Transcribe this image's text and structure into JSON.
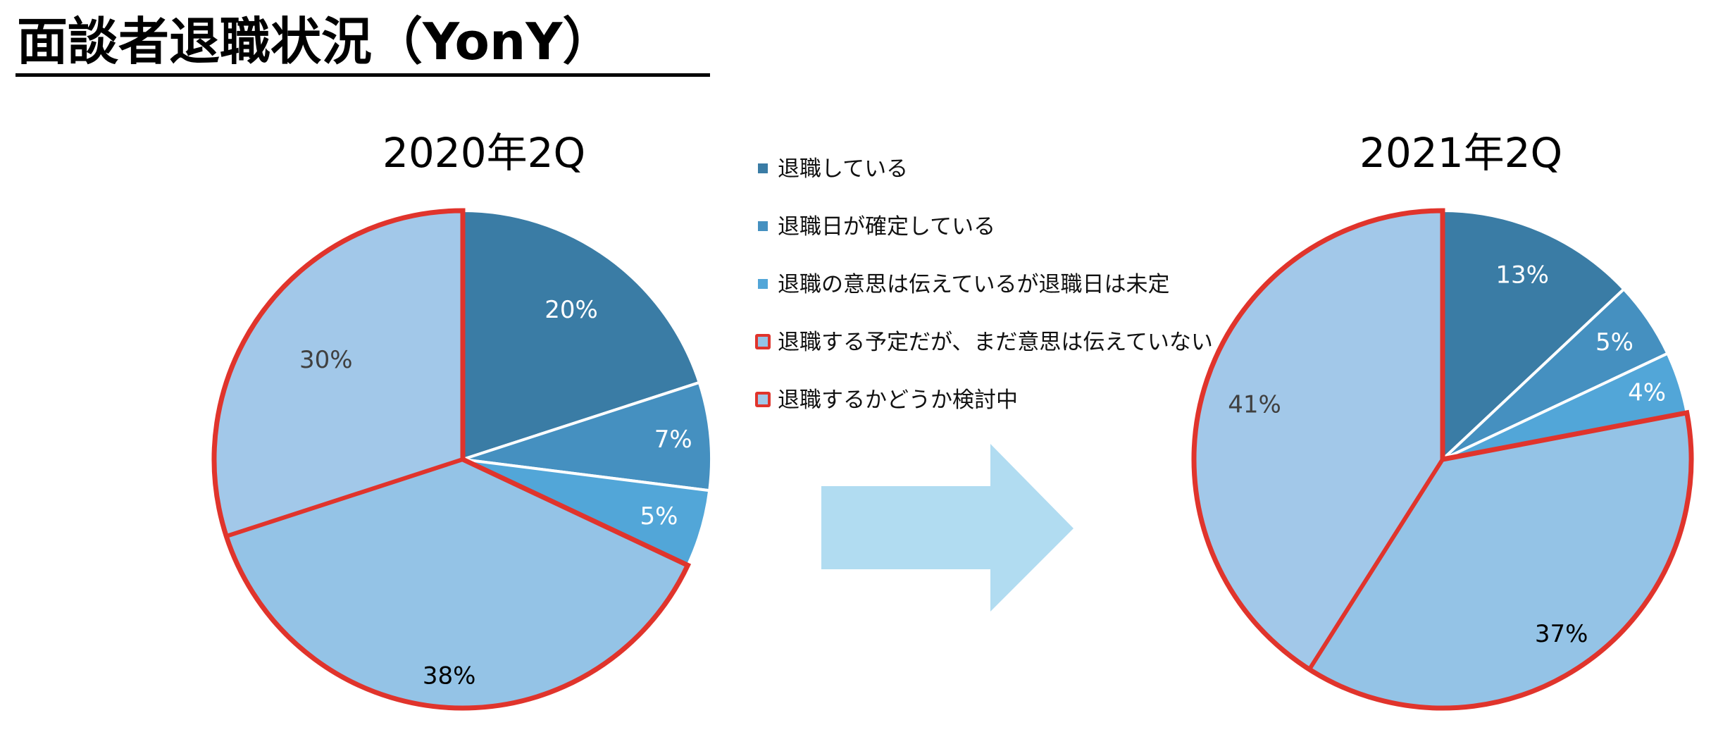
{
  "page": {
    "title": "面談者退職状況（YonY）"
  },
  "legend": [
    {
      "label": "退職している",
      "color": "#3a7ca5",
      "outlined": false
    },
    {
      "label": "退職日が確定している",
      "color": "#4590c0",
      "outlined": false
    },
    {
      "label": "退職の意思は伝えているが退職日は未定",
      "color": "#52a6d8",
      "outlined": false
    },
    {
      "label": "退職する予定だが、まだ意思は伝えていない",
      "color": "#94c3e6",
      "outlined": true
    },
    {
      "label": "退職するかどうか検討中",
      "color": "#a2c8e9",
      "outlined": true
    }
  ],
  "chart_data": [
    {
      "type": "pie",
      "title": "2020年2Q",
      "categories": [
        "退職している",
        "退職日が確定している",
        "退職の意思は伝えているが退職日は未定",
        "退職する予定だが、まだ意思は伝えていない",
        "退職するかどうか検討中"
      ],
      "values": [
        20,
        7,
        5,
        38,
        30
      ],
      "labels": [
        "20%",
        "7%",
        "5%",
        "38%",
        "30%"
      ],
      "colors": [
        "#3a7ca5",
        "#4590c0",
        "#52a6d8",
        "#94c3e6",
        "#a2c8e9"
      ],
      "label_colors": [
        "#ffffff",
        "#ffffff",
        "#ffffff",
        "#000000",
        "#404040"
      ],
      "highlight": {
        "categories": [
          3,
          4
        ],
        "outline_color": "#e0342c"
      }
    },
    {
      "type": "pie",
      "title": "2021年2Q",
      "categories": [
        "退職している",
        "退職日が確定している",
        "退職の意思は伝えているが退職日は未定",
        "退職する予定だが、まだ意思は伝えていない",
        "退職するかどうか検討中"
      ],
      "values": [
        13,
        5,
        4,
        37,
        41
      ],
      "labels": [
        "13%",
        "5%",
        "4%",
        "37%",
        "41%"
      ],
      "colors": [
        "#3a7ca5",
        "#4590c0",
        "#52a6d8",
        "#94c3e6",
        "#a2c8e9"
      ],
      "label_colors": [
        "#ffffff",
        "#ffffff",
        "#ffffff",
        "#000000",
        "#404040"
      ],
      "highlight": {
        "categories": [
          3,
          4
        ],
        "outline_color": "#e0342c"
      }
    }
  ],
  "arrow": {
    "color": "#b1dcf1",
    "direction": "right"
  }
}
